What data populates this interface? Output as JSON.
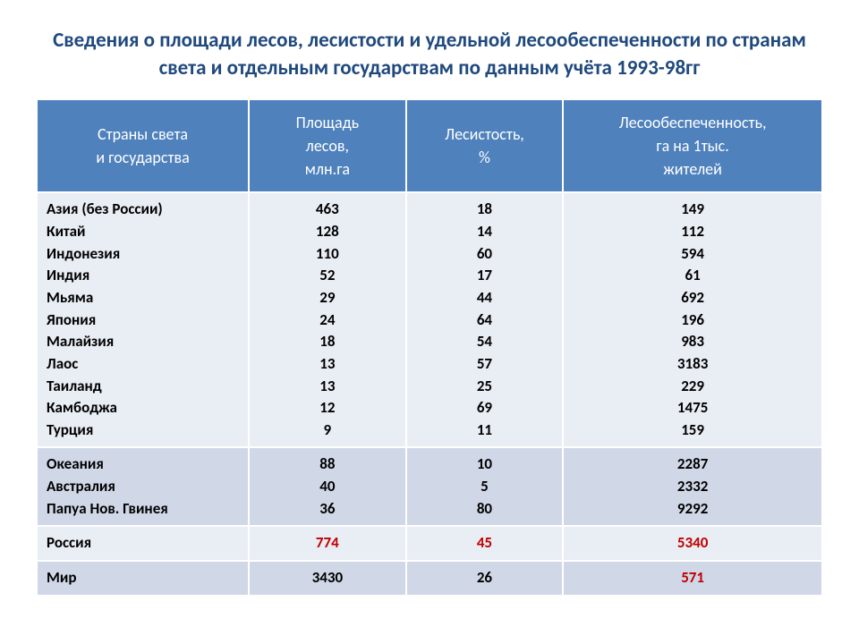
{
  "title": "Сведения о площади лесов, лесистости и удельной лесообеспеченности по странам света и отдельным государствам по данным учёта 1993-98гг",
  "columns": [
    "Страны света\nи государства",
    "Площадь\nлесов,\nмлн.га",
    "Лесистость,\n%",
    "Лесообеспеченность,\nга на 1тыс.\nжителей"
  ],
  "groups": [
    {
      "band": "a",
      "countries": "Азия (без России)\nКитай\nИндонезия\nИндия\nМьяма\nЯпония\nМалайзия\nЛаос\nТаиланд\nКамбоджа\nТурция",
      "area": "463\n128\n110\n52\n29\n24\n18\n13\n13\n12\n9",
      "forestness": "18\n14\n60\n17\n44\n64\n54\n57\n25\n69\n11",
      "provision": "149\n112\n594\n61\n692\n196\n983\n3183\n229\n1475\n159",
      "highlight": []
    },
    {
      "band": "b",
      "countries": "Океания\nАвстралия\nПапуа Нов. Гвинея",
      "area": "88\n40\n36",
      "forestness": "10\n5\n80",
      "provision": "2287\n2332\n9292",
      "highlight": []
    },
    {
      "band": "a",
      "countries": "Россия",
      "area": "774",
      "forestness": "45",
      "provision": "5340",
      "highlight": [
        "area",
        "forestness",
        "provision"
      ]
    },
    {
      "band": "b",
      "countries": "Мир",
      "area": "3430",
      "forestness": "26",
      "provision": "571",
      "highlight": [
        "provision"
      ]
    }
  ],
  "colors": {
    "title": "#1f497d",
    "header_bg": "#4f81bd",
    "header_fg": "#ffffff",
    "band_a": "#e9edf4",
    "band_b": "#d0d8e8",
    "highlight": "#c00000",
    "border": "#ffffff"
  },
  "typography": {
    "title_fontsize": 23,
    "header_fontsize": 18,
    "cell_fontsize": 17,
    "font_family": "Calibri"
  },
  "column_widths_pct": [
    27,
    20,
    20,
    33
  ]
}
